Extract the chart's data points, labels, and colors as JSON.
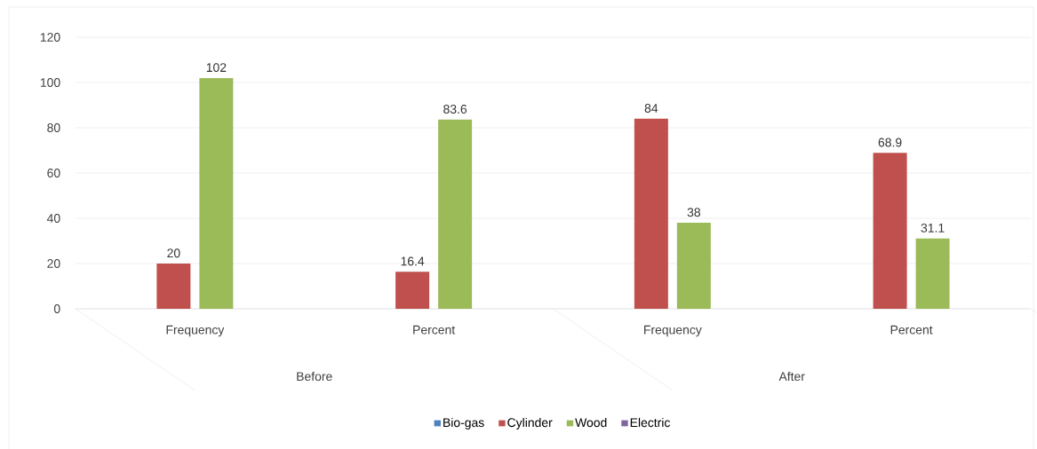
{
  "chart_data": {
    "type": "bar",
    "categories": [
      "Frequency",
      "Percent",
      "Frequency",
      "Percent"
    ],
    "annotations": [
      "Before",
      "After"
    ],
    "series": [
      {
        "name": "Bio-gas",
        "color": "#4f81bd",
        "values": [
          null,
          null,
          null,
          null
        ]
      },
      {
        "name": "Cylinder",
        "color": "#c0504d",
        "values": [
          20,
          16.4,
          84,
          68.9
        ]
      },
      {
        "name": "Wood",
        "color": "#9bbb59",
        "values": [
          102,
          83.6,
          38,
          31.1
        ]
      },
      {
        "name": "Electric",
        "color": "#8064a2",
        "values": [
          null,
          null,
          null,
          null
        ]
      }
    ],
    "ylim": [
      0,
      120
    ],
    "yticks": [
      0,
      20,
      40,
      60,
      80,
      100,
      120
    ],
    "grid": "y",
    "legend": "bottom",
    "data_labels": true
  }
}
